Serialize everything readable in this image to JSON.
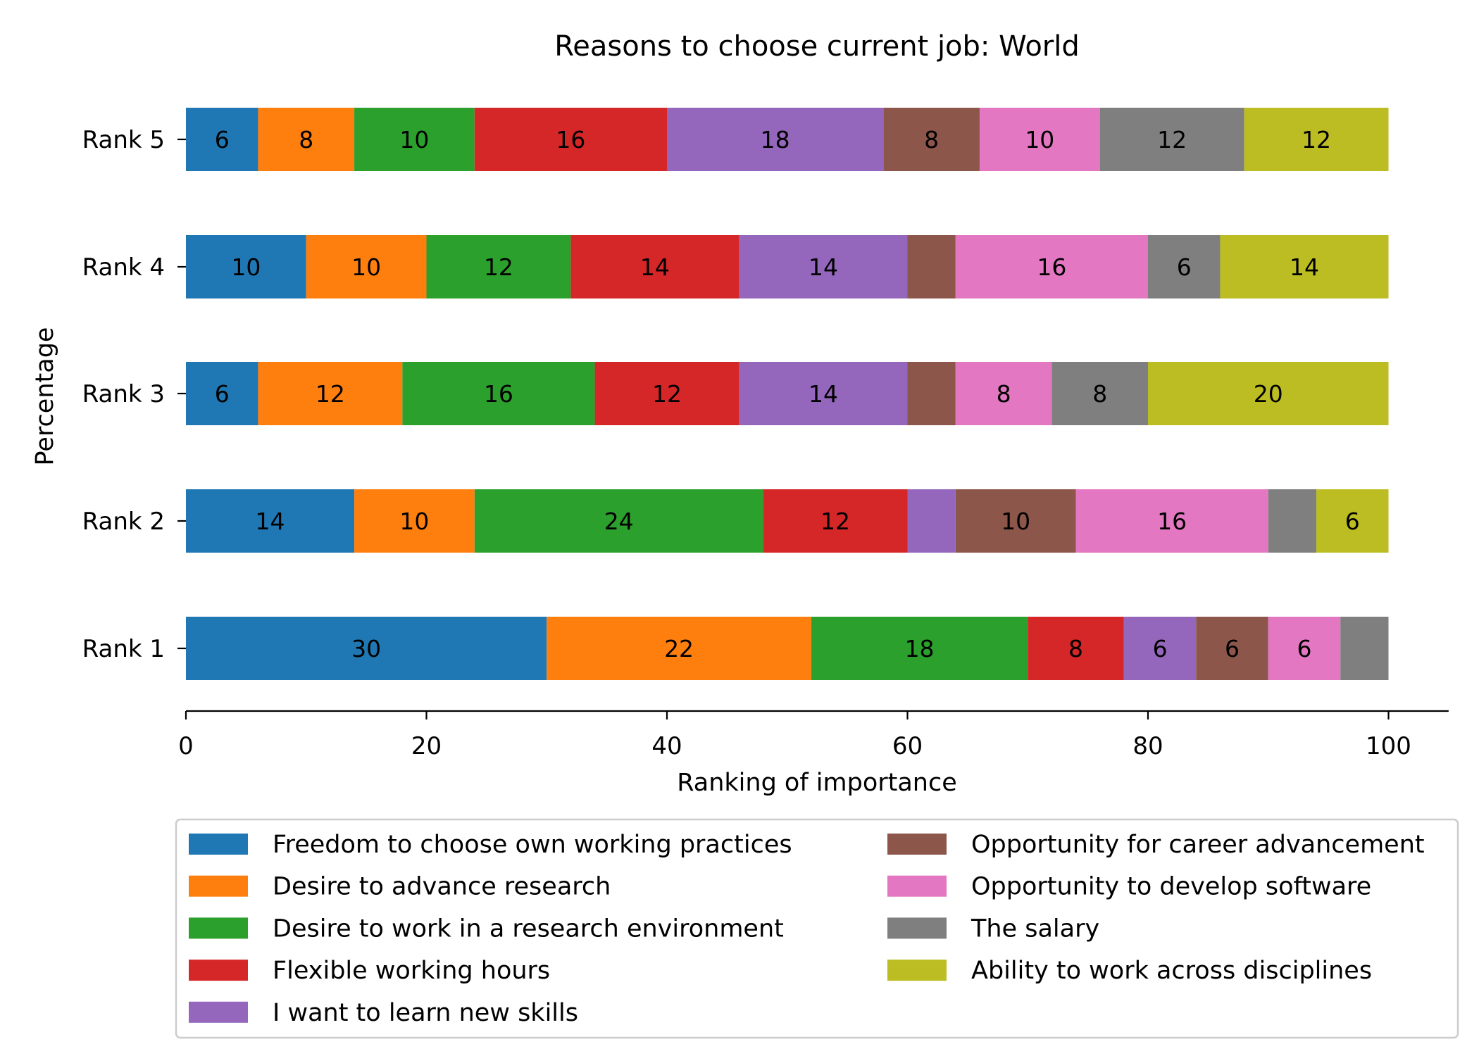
{
  "chart_data": {
    "type": "bar",
    "orientation": "horizontal",
    "stacked": true,
    "title": "Reasons to choose current job: World",
    "xlabel": "Ranking of importance",
    "ylabel": "Percentage",
    "categories": [
      "Rank 1",
      "Rank 2",
      "Rank 3",
      "Rank 4",
      "Rank 5"
    ],
    "xlim": [
      0,
      105
    ],
    "xticks": [
      0,
      20,
      40,
      60,
      80,
      100
    ],
    "grid": false,
    "legend_position": "bottom",
    "series": [
      {
        "name": "Freedom to choose own working practices",
        "color": "#1f77b4",
        "values": [
          30,
          14,
          6,
          10,
          6
        ],
        "labels": [
          "30",
          "14",
          "6",
          "10",
          "6"
        ]
      },
      {
        "name": "Desire to advance research",
        "color": "#ff7f0e",
        "values": [
          22,
          10,
          12,
          10,
          8
        ],
        "labels": [
          "22",
          "10",
          "12",
          "10",
          "8"
        ]
      },
      {
        "name": "Desire to work in a research environment",
        "color": "#2ca02c",
        "values": [
          18,
          24,
          16,
          12,
          10
        ],
        "labels": [
          "18",
          "24",
          "16",
          "12",
          "10"
        ]
      },
      {
        "name": "Flexible working hours",
        "color": "#d62728",
        "values": [
          8,
          12,
          12,
          14,
          16
        ],
        "labels": [
          "8",
          "12",
          "12",
          "14",
          "16"
        ]
      },
      {
        "name": "I want to learn new skills",
        "color": "#9467bd",
        "values": [
          6,
          4,
          14,
          14,
          18
        ],
        "labels": [
          "6",
          "",
          "14",
          "14",
          "18"
        ]
      },
      {
        "name": "Opportunity for career advancement",
        "color": "#8c564b",
        "values": [
          6,
          10,
          4,
          4,
          8
        ],
        "labels": [
          "6",
          "10",
          "",
          "",
          "8"
        ]
      },
      {
        "name": "Opportunity to develop software",
        "color": "#e377c2",
        "values": [
          6,
          16,
          8,
          16,
          10
        ],
        "labels": [
          "6",
          "16",
          "8",
          "16",
          "10"
        ]
      },
      {
        "name": "The salary",
        "color": "#7f7f7f",
        "values": [
          4,
          4,
          8,
          6,
          12
        ],
        "labels": [
          "",
          "",
          "8",
          "6",
          "12"
        ]
      },
      {
        "name": "Ability to work across disciplines",
        "color": "#bcbd22",
        "values": [
          0,
          6,
          20,
          14,
          12
        ],
        "labels": [
          "",
          "6",
          "20",
          "14",
          "12"
        ]
      }
    ]
  }
}
